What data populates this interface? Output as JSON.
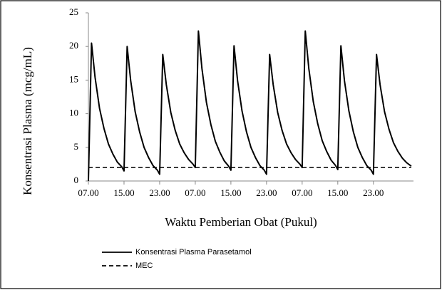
{
  "chart_data": {
    "type": "line",
    "xlabel": "Waktu Pemberian Obat (Pukul)",
    "ylabel": "Konsentrasi Plasma (mcg/mL)",
    "xlim": [
      0,
      73
    ],
    "xticks": [
      {
        "value": 0,
        "label": "07.00"
      },
      {
        "value": 8,
        "label": "15.00"
      },
      {
        "value": 16,
        "label": "23.00"
      },
      {
        "value": 24,
        "label": "07.00"
      },
      {
        "value": 32,
        "label": "15.00"
      },
      {
        "value": 40,
        "label": "23.00"
      },
      {
        "value": 48,
        "label": "07.00"
      },
      {
        "value": 56,
        "label": "15.00"
      },
      {
        "value": 64,
        "label": "23.00"
      }
    ],
    "ylim": [
      0,
      25
    ],
    "yticks": [
      0,
      5,
      10,
      15,
      20,
      25
    ],
    "legend": "bottom",
    "series": [
      {
        "name": "Konsentrasi Plasma Parasetamol",
        "color": "#000000",
        "style": "solid",
        "x": [
          0,
          0.7,
          1.5,
          2.5,
          3.5,
          4.5,
          5.5,
          6.5,
          7.5,
          8,
          8.7,
          9.5,
          10.5,
          11.5,
          12.5,
          13.5,
          14.5,
          15.5,
          16,
          16.7,
          17.5,
          18.5,
          19.5,
          20.5,
          21.5,
          22.5,
          23.5,
          24,
          24.7,
          25.5,
          26.5,
          27.5,
          28.5,
          29.5,
          30.5,
          31.5,
          32,
          32.7,
          33.5,
          34.5,
          35.5,
          36.5,
          37.5,
          38.5,
          39.5,
          40,
          40.7,
          41.5,
          42.5,
          43.5,
          44.5,
          45.5,
          46.5,
          47.5,
          48,
          48.7,
          49.5,
          50.5,
          51.5,
          52.5,
          53.5,
          54.5,
          55.5,
          56,
          56.7,
          57.5,
          58.5,
          59.5,
          60.5,
          61.5,
          62.5,
          63.5,
          64,
          64.7,
          65.5,
          66.5,
          67.5,
          68.5,
          69.5,
          70.5,
          71.5,
          72.5
        ],
        "values": [
          0,
          20.5,
          15.4,
          10.8,
          7.8,
          5.5,
          4.0,
          2.8,
          2.1,
          1.5,
          20.0,
          14.9,
          10.3,
          7.3,
          5.0,
          3.5,
          2.3,
          1.6,
          1.0,
          18.8,
          14.3,
          10.2,
          7.5,
          5.5,
          4.2,
          3.2,
          2.5,
          2.0,
          22.3,
          16.7,
          11.7,
          8.4,
          5.9,
          4.3,
          3.0,
          2.2,
          1.6,
          20.1,
          14.9,
          10.4,
          7.3,
          5.0,
          3.5,
          2.3,
          1.6,
          1.0,
          18.8,
          14.3,
          10.2,
          7.5,
          5.5,
          4.2,
          3.2,
          2.5,
          2.0,
          22.3,
          16.7,
          11.8,
          8.5,
          6.0,
          4.4,
          3.1,
          2.3,
          1.7,
          20.1,
          14.9,
          10.4,
          7.3,
          5.0,
          3.5,
          2.3,
          1.6,
          1.0,
          18.8,
          14.3,
          10.3,
          7.7,
          5.7,
          4.4,
          3.4,
          2.7,
          2.2
        ]
      },
      {
        "name": "MEC",
        "color": "#000000",
        "style": "dashed",
        "x": [
          0,
          72.5
        ],
        "values": [
          2,
          2
        ]
      }
    ]
  }
}
